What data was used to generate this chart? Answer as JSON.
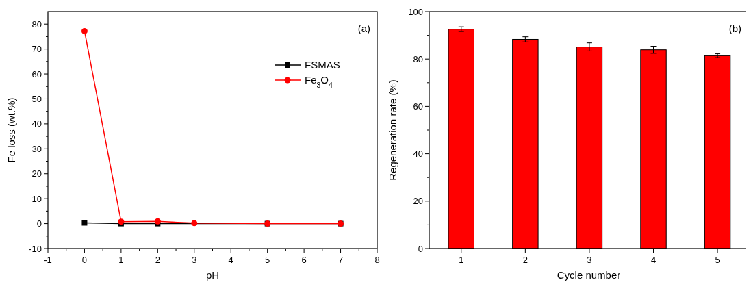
{
  "chart_data": [
    {
      "type": "line",
      "xlabel": "pH",
      "ylabel": "Fe loss (wt.%)",
      "annotations": [
        "(a)"
      ],
      "x": [
        0,
        1,
        2,
        3,
        5,
        7
      ],
      "xlim": [
        -1,
        8
      ],
      "xticks": [
        -1,
        0,
        1,
        2,
        3,
        4,
        5,
        6,
        7,
        8
      ],
      "ylim": [
        -10,
        85
      ],
      "yticks": [
        -10,
        0,
        10,
        20,
        30,
        40,
        50,
        60,
        70,
        80
      ],
      "legend": "top right",
      "series": [
        {
          "name": "FSMAS",
          "color": "#000000",
          "marker": "square",
          "values": [
            0.3,
            0,
            0,
            null,
            0,
            0
          ]
        },
        {
          "name": "Fe$_{3}$O$_{4}$",
          "color": "#ff0000",
          "marker": "circle",
          "values": [
            77.2,
            0.8,
            0.9,
            0.2,
            0,
            0
          ]
        }
      ]
    },
    {
      "type": "bar",
      "xlabel": "Cycle number",
      "ylabel": "Regeneration rate (%)",
      "annotations": [
        "(b)"
      ],
      "categories": [
        "1",
        "2",
        "3",
        "4",
        "5"
      ],
      "values": [
        92.6,
        88.3,
        85.1,
        83.9,
        81.4
      ],
      "errors": [
        1,
        1.1,
        1.7,
        1.5,
        0.8
      ],
      "color": "#ff0000",
      "ylim": [
        0,
        100
      ],
      "yticks": [
        0,
        20,
        40,
        60,
        80,
        100
      ]
    }
  ]
}
